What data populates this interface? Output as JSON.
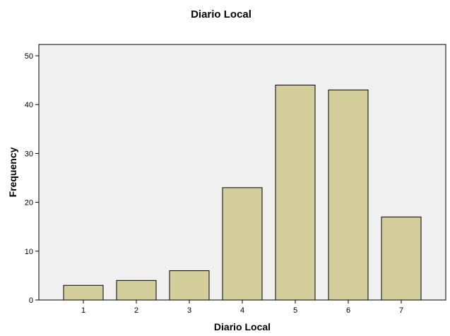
{
  "chart_data": {
    "type": "bar",
    "title": "Diario Local",
    "xlabel": "Diario Local",
    "ylabel": "Frequency",
    "categories": [
      "1",
      "2",
      "3",
      "4",
      "5",
      "6",
      "7"
    ],
    "values": [
      3,
      4,
      6,
      23,
      44,
      43,
      17
    ],
    "ylim": [
      0,
      50
    ],
    "yticks": [
      "0",
      "10",
      "20",
      "30",
      "40",
      "50"
    ],
    "grid": false,
    "colors": {
      "bar_fill": "#d3ce9c",
      "bar_stroke": "#000000",
      "plot_background": "#f0f0f0"
    }
  }
}
